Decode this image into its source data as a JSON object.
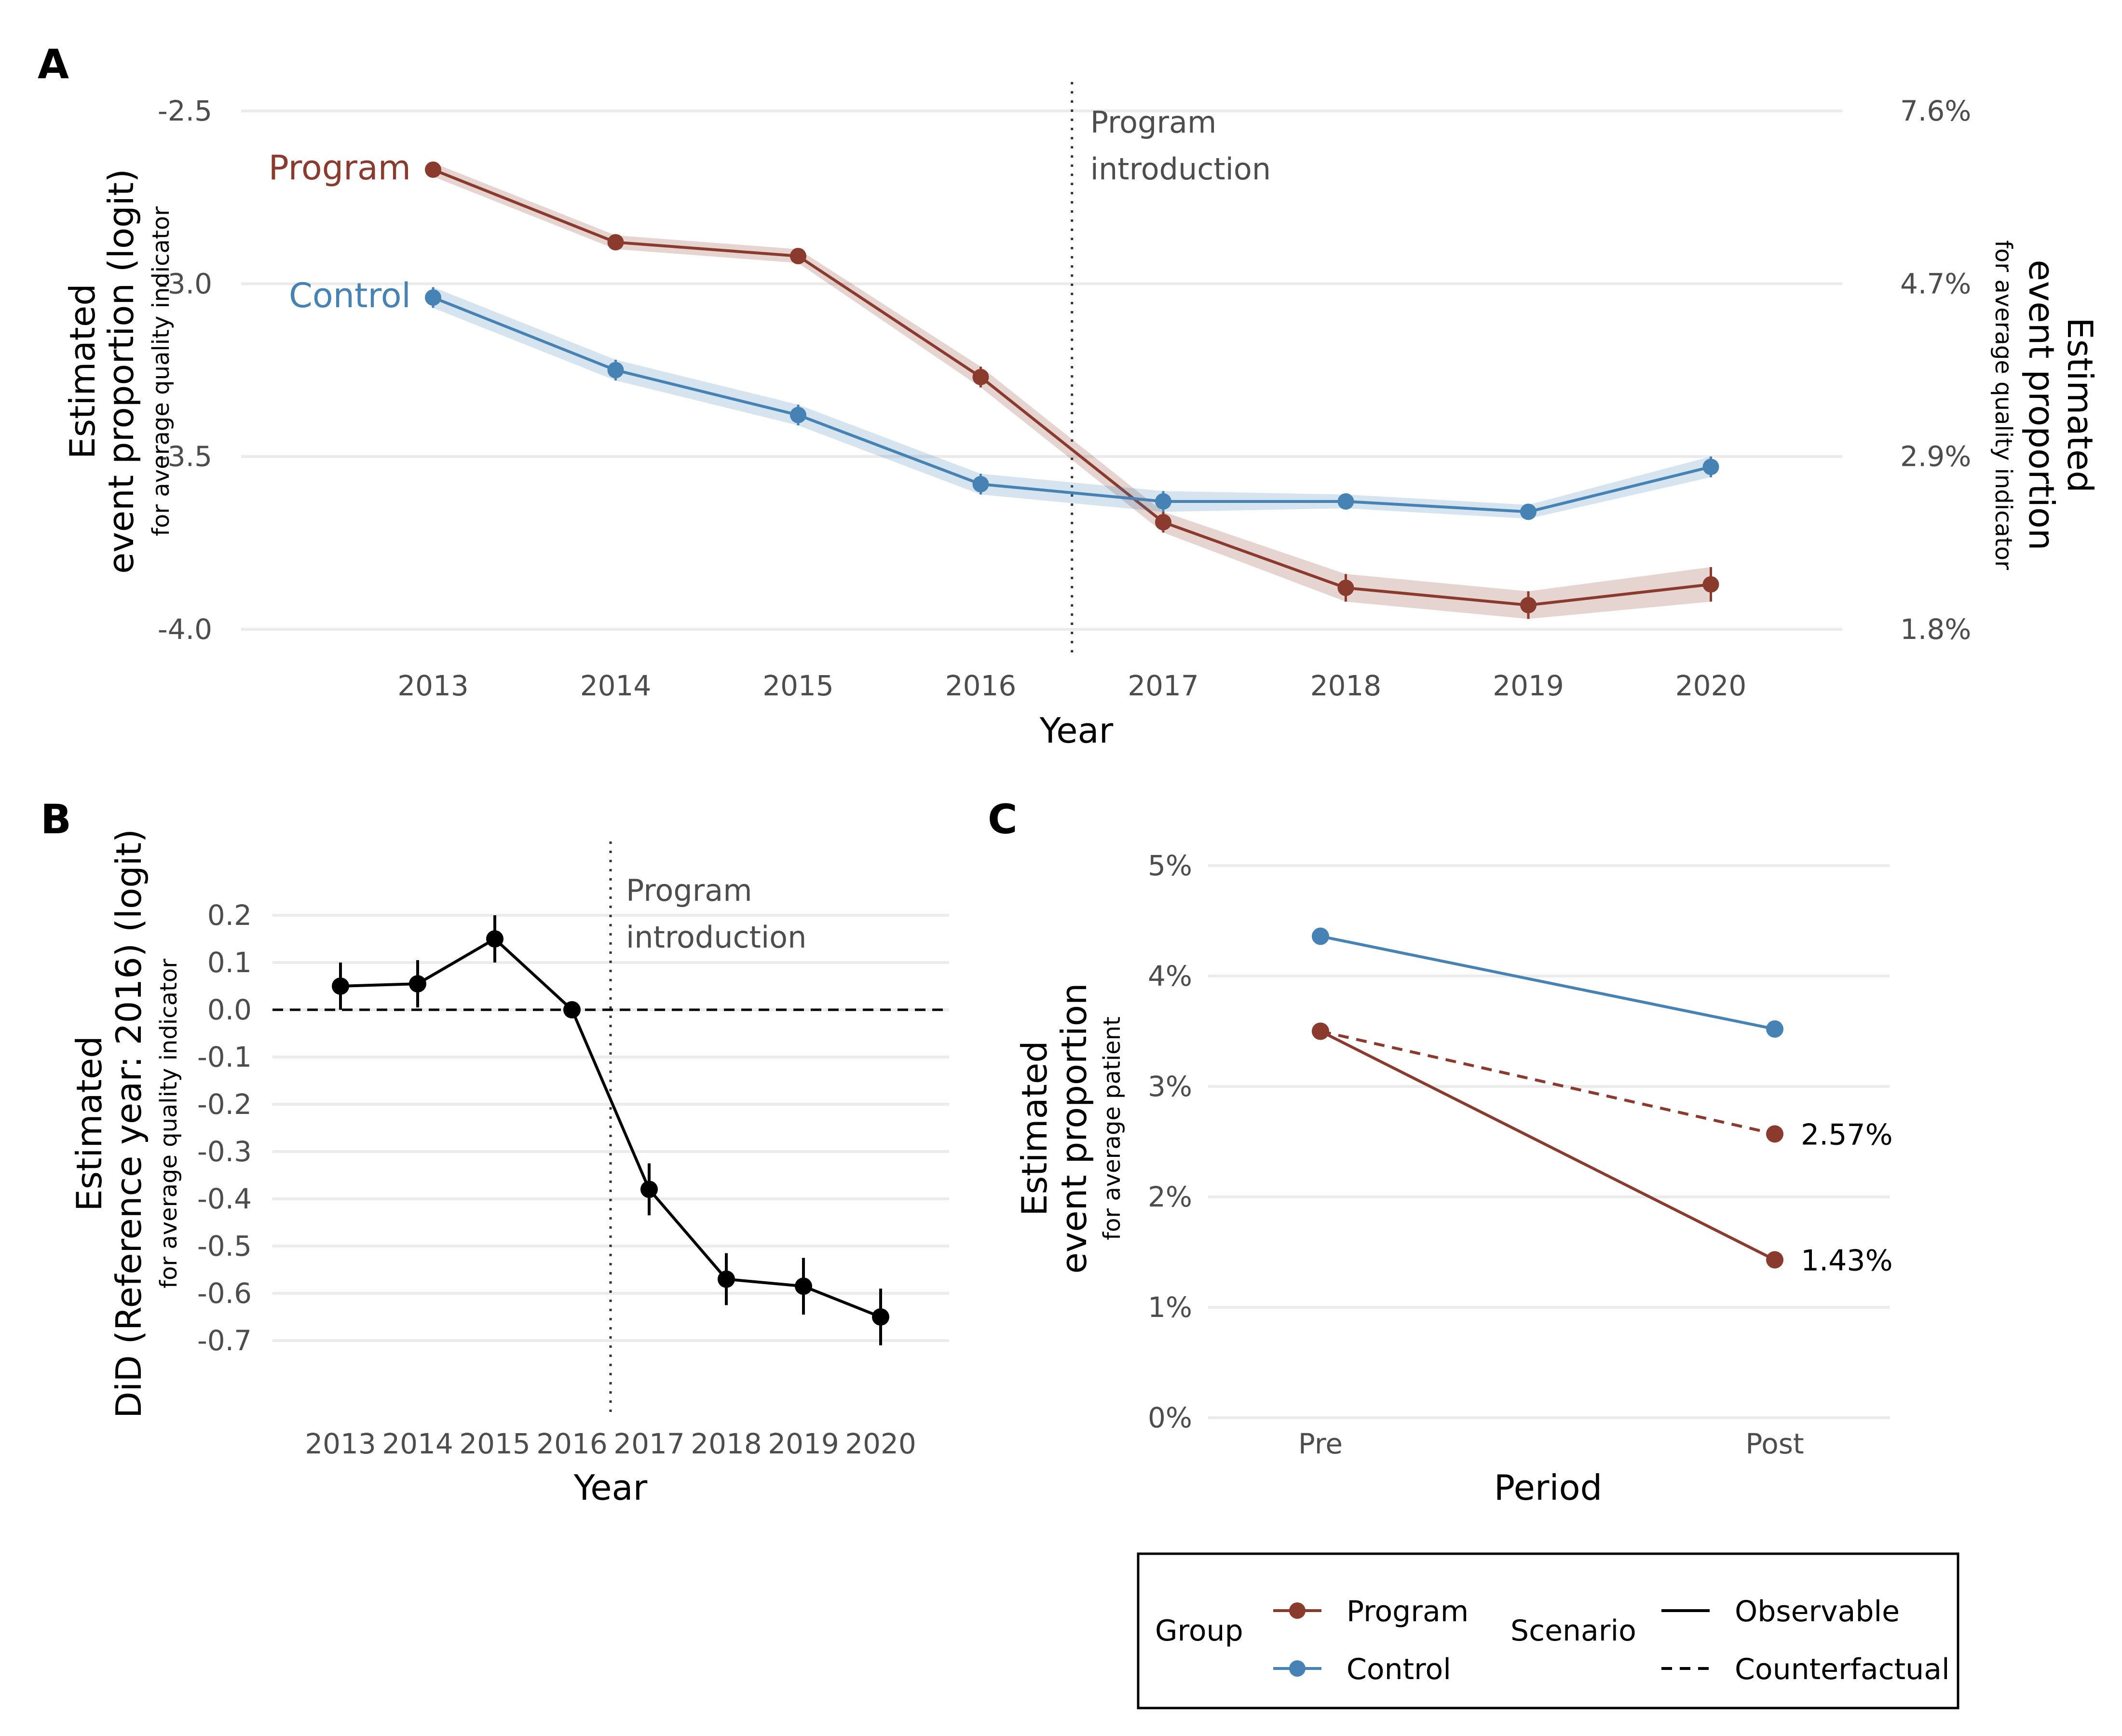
{
  "chart_data": [
    {
      "panel": "A",
      "type": "line",
      "x": [
        2013,
        2014,
        2015,
        2016,
        2017,
        2018,
        2019,
        2020
      ],
      "xlabel": "Year",
      "ylabel": "Estimated event proportion (logit)",
      "ylabel_sub": "for average quality indicator",
      "ylabel_right": "Estimated event proportion",
      "ylabel_right_sub": "for average quality indicator",
      "ylim": [
        -4.0,
        -2.5
      ],
      "yticks": [
        "-2.5",
        "-3.0",
        "-3.5",
        "-4.0"
      ],
      "yticks_right": [
        "7.6%",
        "4.7%",
        "2.9%",
        "1.8%"
      ],
      "grid": true,
      "annotation": {
        "x": 2016.5,
        "line1": "Program",
        "line2": "introduction"
      },
      "series": [
        {
          "name": "Program",
          "color": "#8B3A2E",
          "values": [
            -2.67,
            -2.88,
            -2.92,
            -3.27,
            -3.69,
            -3.88,
            -3.93,
            -3.87
          ],
          "err": [
            0.02,
            0.02,
            0.02,
            0.03,
            0.03,
            0.04,
            0.04,
            0.05
          ]
        },
        {
          "name": "Control",
          "color": "#4682B4",
          "values": [
            -3.04,
            -3.25,
            -3.38,
            -3.58,
            -3.63,
            -3.63,
            -3.66,
            -3.53
          ],
          "err": [
            0.03,
            0.03,
            0.03,
            0.03,
            0.03,
            0.02,
            0.02,
            0.03
          ]
        }
      ]
    },
    {
      "panel": "B",
      "type": "line",
      "x": [
        2013,
        2014,
        2015,
        2016,
        2017,
        2018,
        2019,
        2020
      ],
      "xlabel": "Year",
      "ylabel": "Estimated",
      "ylabel2": "DiD (Reference year: 2016) (logit)",
      "ylabel_sub": "for average quality indicator",
      "ylim": [
        -0.85,
        0.25
      ],
      "yticks": [
        "0.2",
        "0.1",
        "0.0",
        "-0.1",
        "-0.2",
        "-0.3",
        "-0.4",
        "-0.5",
        "-0.6",
        "-0.7"
      ],
      "grid": true,
      "annotation": {
        "x": 2016.5,
        "line1": "Program",
        "line2": "introduction"
      },
      "series": [
        {
          "name": "DiD",
          "color": "#000000",
          "values": [
            0.05,
            0.055,
            0.15,
            0.0,
            -0.38,
            -0.57,
            -0.585,
            -0.65
          ],
          "err": [
            0.05,
            0.05,
            0.05,
            0.0,
            0.055,
            0.055,
            0.06,
            0.06
          ]
        }
      ]
    },
    {
      "panel": "C",
      "type": "line",
      "categories": [
        "Pre",
        "Post"
      ],
      "xlabel": "Period",
      "ylabel": "Estimated",
      "ylabel2": "event proportion",
      "ylabel_sub": "for average patient",
      "ylim": [
        0,
        5
      ],
      "yticks": [
        "5%",
        "4%",
        "3%",
        "2%",
        "1%",
        "0%"
      ],
      "grid": true,
      "series": [
        {
          "name": "Control",
          "scenario": "Observable",
          "color": "#4682B4",
          "values": [
            4.36,
            3.52
          ]
        },
        {
          "name": "Program",
          "scenario": "Observable",
          "color": "#8B3A2E",
          "values": [
            3.5,
            1.43
          ]
        },
        {
          "name": "Program",
          "scenario": "Counterfactual",
          "color": "#8B3A2E",
          "values": [
            3.5,
            2.57
          ]
        }
      ],
      "data_labels": [
        "2.57%",
        "1.43%"
      ]
    }
  ],
  "legend": {
    "group_title": "Group",
    "groups": [
      {
        "label": "Program",
        "color": "#8B3A2E"
      },
      {
        "label": "Control",
        "color": "#4682B4"
      }
    ],
    "scenario_title": "Scenario",
    "scenarios": [
      "Observable",
      "Counterfactual"
    ]
  }
}
